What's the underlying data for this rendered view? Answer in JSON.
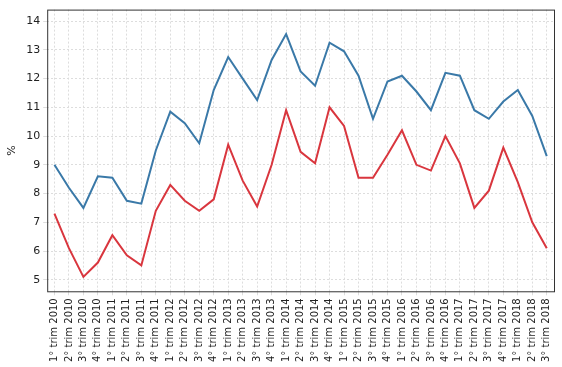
{
  "chart_data": {
    "type": "line",
    "y_label": "%",
    "categories": [
      "1° trim 2010",
      "2° trim 2010",
      "3° trim 2010",
      "4° trim 2010",
      "1° trim 2011",
      "2° trim 2011",
      "3° trim 2011",
      "4° trim 2011",
      "1° trim 2012",
      "2° trim 2012",
      "3° trim 2012",
      "4° trim 2012",
      "1° trim 2013",
      "2° trim 2013",
      "3° trim 2013",
      "4° trim 2013",
      "1° trim 2014",
      "2° trim 2014",
      "3° trim 2014",
      "4° trim 2014",
      "1° trim 2015",
      "2° trim 2015",
      "3° trim 2015",
      "4° trim 2015",
      "1° trim 2016",
      "2° trim 2016",
      "3° trim 2016",
      "4° trim 2016",
      "1° trim 2017",
      "2° trim 2017",
      "3° trim 2017",
      "4° trim 2017",
      "1° trim 2018",
      "2° trim 2018",
      "3° trim 2018"
    ],
    "series": [
      {
        "color": "#3a79a8",
        "values": [
          9.0,
          8.2,
          7.5,
          8.6,
          8.55,
          7.75,
          7.65,
          9.5,
          10.85,
          10.45,
          9.75,
          11.6,
          12.75,
          12.0,
          11.25,
          12.65,
          13.55,
          12.25,
          11.75,
          13.25,
          12.95,
          12.1,
          10.6,
          11.9,
          12.1,
          11.55,
          10.9,
          12.2,
          12.1,
          10.9,
          10.6,
          11.2,
          11.6,
          10.7,
          9.3
        ]
      },
      {
        "color": "#d9363e",
        "values": [
          7.3,
          6.1,
          5.1,
          5.6,
          6.55,
          5.85,
          5.5,
          7.4,
          8.3,
          7.75,
          7.4,
          7.8,
          9.7,
          8.45,
          7.55,
          9.0,
          10.9,
          9.45,
          9.05,
          11.0,
          10.35,
          8.55,
          8.55,
          9.35,
          10.2,
          9.0,
          8.8,
          10.0,
          9.05,
          7.5,
          8.1,
          9.6,
          8.4,
          7.0,
          6.1
        ]
      }
    ],
    "ylim": [
      4.6,
      14.4
    ],
    "yticks": [
      5,
      6,
      7,
      8,
      9,
      10,
      11,
      12,
      13,
      14
    ],
    "grid": true
  }
}
